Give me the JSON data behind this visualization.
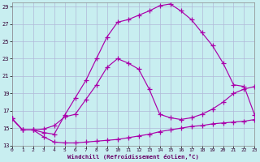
{
  "xlabel": "Windchill (Refroidissement éolien,°C)",
  "xlim": [
    0,
    23
  ],
  "ylim": [
    13,
    29.5
  ],
  "yticks": [
    13,
    15,
    17,
    19,
    21,
    23,
    25,
    27,
    29
  ],
  "xticks": [
    0,
    1,
    2,
    3,
    4,
    5,
    6,
    7,
    8,
    9,
    10,
    11,
    12,
    13,
    14,
    15,
    16,
    17,
    18,
    19,
    20,
    21,
    22,
    23
  ],
  "bg_color": "#c8eef0",
  "grid_color": "#b0b8d8",
  "line_color": "#aa00aa",
  "line1_y": [
    16.1,
    14.8,
    14.8,
    14.0,
    13.4,
    13.3,
    13.3,
    13.4,
    13.5,
    13.6,
    13.7,
    13.9,
    14.1,
    14.3,
    14.6,
    14.8,
    15.0,
    15.2,
    15.3,
    15.5,
    15.6,
    15.7,
    15.8,
    16.0
  ],
  "line2_y": [
    16.1,
    14.8,
    14.8,
    14.9,
    15.3,
    16.3,
    16.6,
    18.3,
    20.0,
    22.0,
    23.0,
    22.5,
    21.8,
    19.5,
    16.6,
    16.2,
    16.0,
    16.2,
    16.6,
    17.2,
    18.0,
    19.0,
    19.5,
    19.8
  ],
  "line3_y": [
    16.1,
    14.8,
    14.8,
    14.5,
    14.3,
    16.5,
    18.5,
    20.5,
    23.0,
    25.5,
    27.2,
    27.5,
    28.0,
    28.5,
    29.1,
    29.3,
    28.5,
    27.5,
    26.0,
    24.5,
    22.5,
    20.0,
    19.8,
    16.5
  ]
}
